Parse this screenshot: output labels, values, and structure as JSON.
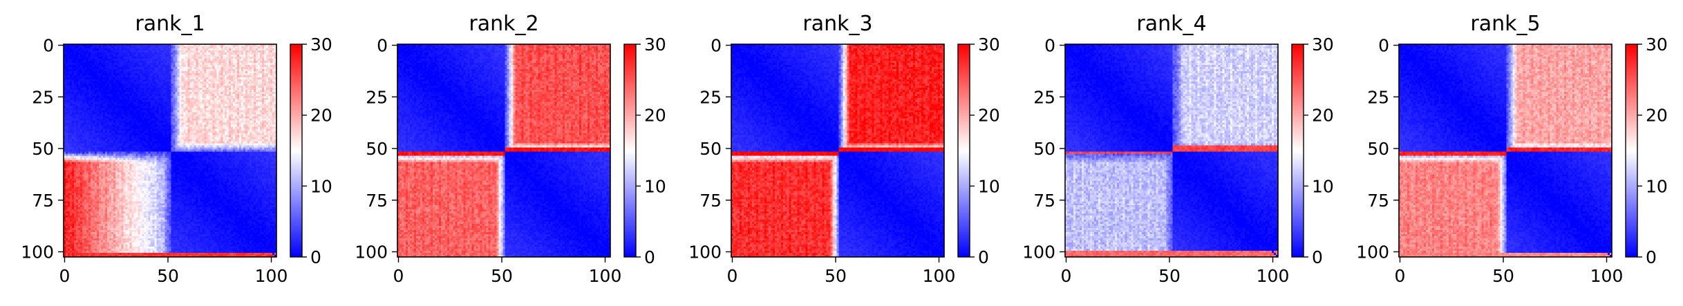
{
  "figure": {
    "colormap": "bwr",
    "colors": {
      "low": "#0000ff",
      "mid": "#ffffff",
      "high": "#ff0000"
    },
    "colorbar": {
      "vmin": 0,
      "vmax": 30,
      "ticks": [
        0,
        10,
        20,
        30
      ]
    }
  },
  "chart_data": [
    {
      "type": "heatmap",
      "title": "rank_1",
      "xlabel": "",
      "ylabel": "",
      "xlim": [
        0,
        103
      ],
      "ylim": [
        103,
        0
      ],
      "x_ticks": [
        0,
        50,
        100
      ],
      "y_ticks": [
        0,
        25,
        50,
        75,
        100
      ],
      "clim": [
        0,
        30
      ],
      "colorbar_ticks": [
        0,
        10,
        20,
        30
      ],
      "grid": false,
      "n_cells": 103,
      "boundary": 52,
      "structure": {
        "blocks": [
          [
            0,
            52
          ],
          [
            52,
            103
          ]
        ],
        "upper_right_value": 17,
        "lower_left_value": 16,
        "lower_left_gradient": "bright red near x=0, fading to white near x=40",
        "edge_bands": [
          {
            "rows": [
              101,
              103
            ],
            "value": 27
          }
        ],
        "diagonal_value": 0
      }
    },
    {
      "type": "heatmap",
      "title": "rank_2",
      "xlabel": "",
      "ylabel": "",
      "xlim": [
        0,
        103
      ],
      "ylim": [
        103,
        0
      ],
      "x_ticks": [
        0,
        50,
        100
      ],
      "y_ticks": [
        0,
        25,
        50,
        75,
        100
      ],
      "clim": [
        0,
        30
      ],
      "colorbar_ticks": [
        0,
        10,
        20,
        30
      ],
      "grid": false,
      "n_cells": 103,
      "boundary": 52,
      "structure": {
        "blocks": [
          [
            0,
            52
          ],
          [
            52,
            103
          ]
        ],
        "upper_right_value": 25,
        "lower_left_value": 24,
        "edge_bands": [
          {
            "rows": [
              50,
              54
            ],
            "value": 29
          }
        ],
        "diagonal_value": 0
      }
    },
    {
      "type": "heatmap",
      "title": "rank_3",
      "xlabel": "",
      "ylabel": "",
      "xlim": [
        0,
        103
      ],
      "ylim": [
        103,
        0
      ],
      "x_ticks": [
        0,
        50,
        100
      ],
      "y_ticks": [
        0,
        25,
        50,
        75,
        100
      ],
      "clim": [
        0,
        30
      ],
      "colorbar_ticks": [
        0,
        10,
        20,
        30
      ],
      "grid": false,
      "n_cells": 103,
      "boundary": 52,
      "structure": {
        "blocks": [
          [
            0,
            52
          ],
          [
            52,
            103
          ]
        ],
        "upper_right_value": 28,
        "lower_left_value": 27,
        "edge_bands": [
          {
            "rows": [
              50,
              54
            ],
            "value": 30
          }
        ],
        "diagonal_value": 0
      }
    },
    {
      "type": "heatmap",
      "title": "rank_4",
      "xlabel": "",
      "ylabel": "",
      "xlim": [
        0,
        103
      ],
      "ylim": [
        103,
        0
      ],
      "x_ticks": [
        0,
        50,
        100
      ],
      "y_ticks": [
        0,
        25,
        50,
        75,
        100
      ],
      "clim": [
        0,
        30
      ],
      "colorbar_ticks": [
        0,
        10,
        20,
        30
      ],
      "grid": false,
      "n_cells": 103,
      "boundary": 52,
      "structure": {
        "blocks": [
          [
            0,
            52
          ],
          [
            52,
            103
          ]
        ],
        "upper_right_value": 12,
        "lower_left_value": 11,
        "edge_bands": [
          {
            "rows": [
              49,
              53
            ],
            "value": 26
          },
          {
            "rows": [
              100,
              103
            ],
            "value": 24
          }
        ],
        "diagonal_value": 0
      }
    },
    {
      "type": "heatmap",
      "title": "rank_5",
      "xlabel": "",
      "ylabel": "",
      "xlim": [
        0,
        103
      ],
      "ylim": [
        103,
        0
      ],
      "x_ticks": [
        0,
        50,
        100
      ],
      "y_ticks": [
        0,
        25,
        50,
        75,
        100
      ],
      "clim": [
        0,
        30
      ],
      "colorbar_ticks": [
        0,
        10,
        20,
        30
      ],
      "grid": false,
      "n_cells": 103,
      "boundary": 52,
      "structure": {
        "blocks": [
          [
            0,
            52
          ],
          [
            52,
            103
          ]
        ],
        "upper_right_value": 20,
        "lower_left_value": 22,
        "edge_bands": [
          {
            "rows": [
              50,
              54
            ],
            "value": 28
          },
          {
            "rows": [
              101,
              103
            ],
            "value": 22
          }
        ],
        "diagonal_value": 0
      }
    }
  ]
}
